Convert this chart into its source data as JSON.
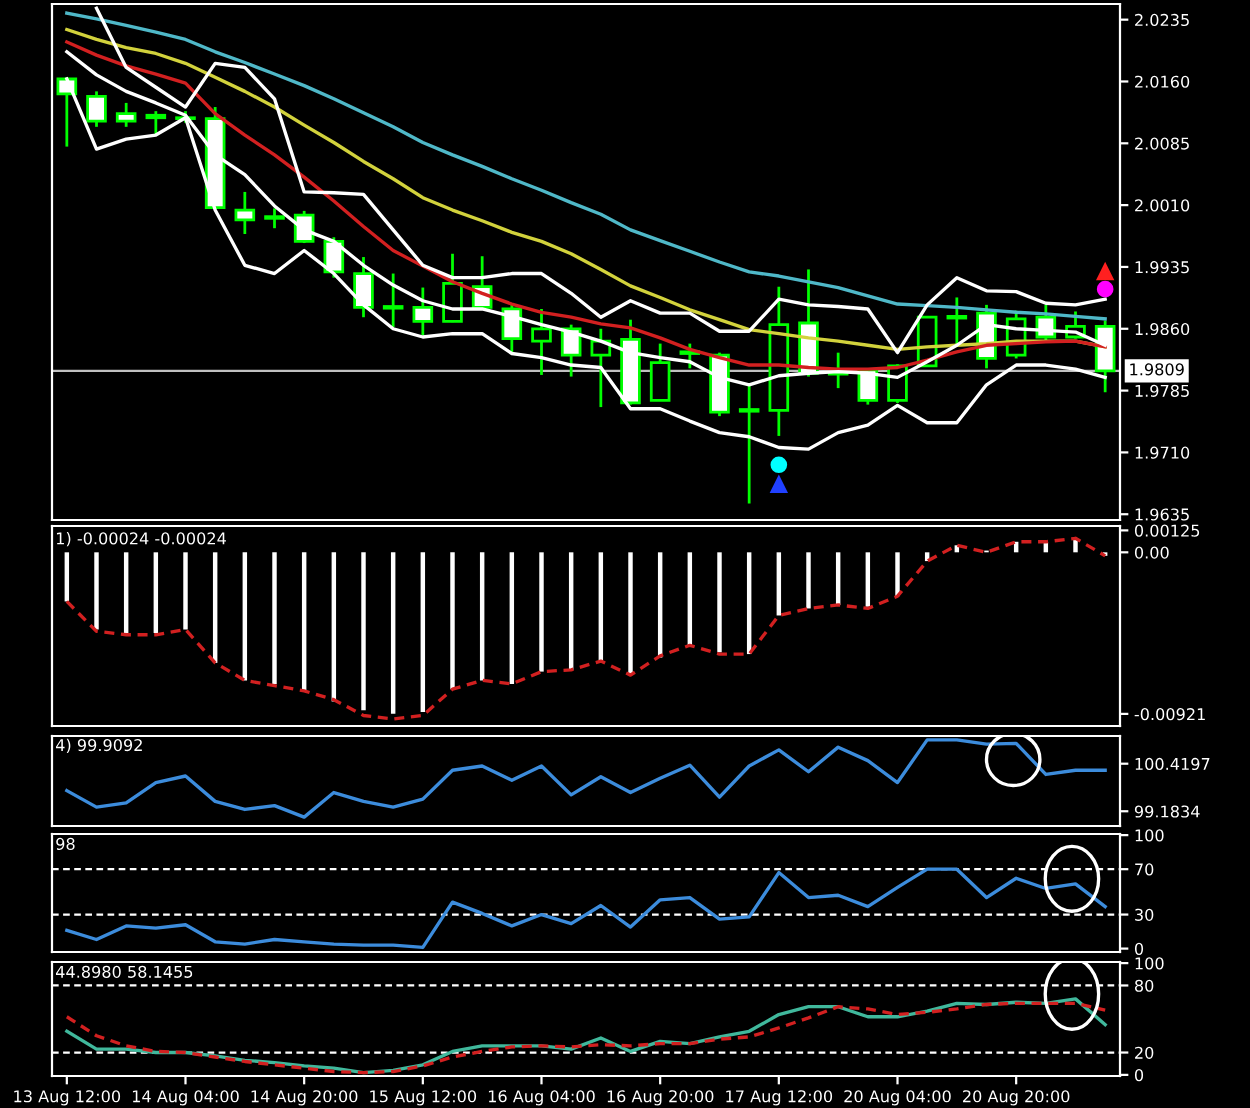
{
  "chart_data": [
    {
      "type": "candlestick",
      "categories": [
        null,
        null,
        null,
        null,
        null,
        null,
        null,
        null,
        null,
        null,
        null,
        null,
        null,
        null,
        null,
        null,
        null,
        null,
        null,
        null,
        null,
        null,
        null,
        null,
        null,
        null,
        null,
        null,
        null,
        null,
        null,
        null,
        null,
        null,
        null,
        null
      ],
      "ohlc": [
        [
          2.0163,
          2.0165,
          2.0081,
          2.0145
        ],
        [
          2.0142,
          2.0148,
          2.0105,
          2.0112
        ],
        [
          2.0121,
          2.0134,
          2.0105,
          2.0112
        ],
        [
          2.0119,
          2.0124,
          2.0095,
          2.0116
        ],
        [
          2.0116,
          2.0124,
          2.011,
          2.0115
        ],
        [
          2.0115,
          2.0129,
          2.0006,
          2.0007
        ],
        [
          2.0004,
          2.0026,
          1.9975,
          1.9992
        ],
        [
          1.9996,
          2.0006,
          1.9982,
          1.9994
        ],
        [
          1.9998,
          2.0003,
          1.9964,
          1.9966
        ],
        [
          1.9966,
          1.9971,
          1.9922,
          1.9929
        ],
        [
          1.9927,
          1.9947,
          1.9874,
          1.9886
        ],
        [
          1.9887,
          1.9927,
          1.9862,
          1.9885
        ],
        [
          1.9886,
          1.991,
          1.9852,
          1.9869
        ],
        [
          1.9869,
          1.9951,
          1.9868,
          1.9915
        ],
        [
          1.9911,
          1.9948,
          1.9884,
          1.9886
        ],
        [
          1.9884,
          1.9889,
          1.9831,
          1.9848
        ],
        [
          1.9845,
          1.9884,
          1.9804,
          1.986
        ],
        [
          1.986,
          1.9865,
          1.9802,
          1.9828
        ],
        [
          1.9828,
          1.986,
          1.9765,
          1.9845
        ],
        [
          1.9847,
          1.9871,
          1.9768,
          1.977
        ],
        [
          1.9773,
          1.9842,
          1.9773,
          1.9819
        ],
        [
          1.983,
          1.9842,
          1.9812,
          1.9832
        ],
        [
          1.9828,
          1.9831,
          1.9754,
          1.9759
        ],
        [
          1.9762,
          1.9792,
          1.9648,
          1.976
        ],
        [
          1.9761,
          1.9911,
          1.973,
          1.9865
        ],
        [
          1.9867,
          1.9932,
          1.9802,
          1.9806
        ],
        [
          1.9807,
          1.9831,
          1.9788,
          1.9805
        ],
        [
          1.981,
          1.9812,
          1.9768,
          1.9773
        ],
        [
          1.9773,
          1.9817,
          1.977,
          1.9815
        ],
        [
          1.9815,
          1.9875,
          1.9814,
          1.9874
        ],
        [
          1.9873,
          1.9898,
          1.9841,
          1.9875
        ],
        [
          1.9879,
          1.9889,
          1.9812,
          1.9824
        ],
        [
          1.9828,
          1.9882,
          1.9824,
          1.9872
        ],
        [
          1.9874,
          1.9889,
          1.9845,
          1.985
        ],
        [
          1.985,
          1.9881,
          1.9848,
          1.9863
        ],
        [
          1.9863,
          1.987,
          1.9783,
          1.9809
        ]
      ],
      "color": "#00ff00",
      "colors": [
        "#ffffff",
        "#ffffff",
        "#ffffff",
        "#ffffff",
        "#ffffff",
        "#ffffff",
        "#ffffff",
        "#ffffff",
        "#ffffff",
        "#ffffff",
        "#ffffff",
        "#ffffff",
        "#ffffff",
        "#000000",
        "#ffffff",
        "#ffffff",
        "#000000",
        "#ffffff",
        "#000000",
        "#ffffff",
        "#000000",
        "#000000",
        "#ffffff",
        "#ffffff",
        "#000000",
        "#ffffff",
        "#ffffff",
        "#ffffff",
        "#000000",
        "#000000",
        "#000000",
        "#ffffff",
        "#000000",
        "#ffffff",
        "#000000",
        "#ffffff"
      ],
      "series": [
        {
          "type": "line",
          "color": "#4fb8c8",
          "values": [
            2.0243,
            2.0236,
            2.0228,
            2.022,
            2.0211,
            2.0196,
            2.0183,
            2.0169,
            2.0155,
            2.0139,
            2.0122,
            2.0105,
            2.0086,
            2.0071,
            2.0057,
            2.0042,
            2.0028,
            2.0013,
            1.9999,
            1.998,
            1.9967,
            1.9954,
            1.9941,
            1.9929,
            1.9924,
            1.9917,
            1.991,
            1.99,
            1.989,
            1.9888,
            1.9886,
            1.9883,
            1.988,
            1.9878,
            1.9875,
            1.9872
          ]
        },
        {
          "type": "line",
          "color": "#d2d23c",
          "values": [
            2.0223,
            2.0211,
            2.0201,
            2.0194,
            2.0182,
            2.0165,
            2.0148,
            2.0129,
            2.0107,
            2.0086,
            2.0063,
            2.0042,
            2.0019,
            2.0004,
            1.9991,
            1.9977,
            1.9966,
            1.9951,
            1.9932,
            1.9912,
            1.9898,
            1.9883,
            1.9871,
            1.9859,
            1.9854,
            1.9849,
            1.9845,
            1.984,
            1.9835,
            1.9838,
            1.984,
            1.9842,
            1.9845,
            1.9845,
            1.9845,
            1.9838
          ]
        },
        {
          "type": "line",
          "color": "#d22020",
          "values": [
            2.0208,
            2.0192,
            2.0179,
            2.0169,
            2.0158,
            2.0121,
            2.0095,
            2.0071,
            2.0044,
            2.0015,
            1.9984,
            1.9955,
            1.9936,
            1.9917,
            1.9903,
            1.989,
            1.988,
            1.9874,
            1.9866,
            1.9861,
            1.9849,
            1.9835,
            1.9825,
            1.9816,
            1.9816,
            1.9813,
            1.9811,
            1.9811,
            1.9813,
            1.9822,
            1.9832,
            1.984,
            1.9842,
            1.9844,
            1.9845,
            1.9838
          ]
        },
        {
          "type": "line",
          "color": "#ffffff",
          "values": [
            null,
            2.0249,
            2.0177,
            2.0153,
            2.0129,
            2.0182,
            2.0177,
            2.0139,
            2.0026,
            2.0025,
            2.0023,
            1.998,
            1.9937,
            1.9922,
            1.9922,
            1.9927,
            1.9927,
            1.9903,
            1.9874,
            1.9894,
            1.9879,
            1.9879,
            1.9857,
            1.9857,
            1.9896,
            1.9889,
            1.9887,
            1.9884,
            1.9831,
            1.9889,
            1.9922,
            1.9906,
            1.9905,
            1.9891,
            1.9889,
            1.9896
          ]
        },
        {
          "type": "line",
          "color": "#ffffff",
          "values": [
            2.0196,
            2.0168,
            2.0148,
            2.0134,
            2.0119,
            2.0071,
            2.0047,
            2.0009,
            1.998,
            1.9966,
            1.9937,
            1.9913,
            1.9894,
            1.9884,
            1.9884,
            1.9875,
            1.9865,
            1.9856,
            1.9845,
            1.9831,
            1.9825,
            1.982,
            1.9801,
            1.9792,
            1.9803,
            1.9806,
            1.9808,
            1.9806,
            1.9801,
            1.982,
            1.984,
            1.9865,
            1.986,
            1.9858,
            1.9856,
            1.984
          ]
        },
        {
          "type": "line",
          "color": "#ffffff",
          "values": [
            2.0163,
            2.0078,
            2.009,
            2.0095,
            2.0116,
            2.0004,
            1.9937,
            1.9927,
            1.9955,
            1.9927,
            1.9889,
            1.986,
            1.985,
            1.9854,
            1.9854,
            1.983,
            1.9825,
            1.9816,
            1.9813,
            1.9763,
            1.9763,
            1.9748,
            1.9734,
            1.9729,
            1.9716,
            1.9714,
            1.9734,
            1.9743,
            1.9767,
            1.9746,
            1.9746,
            1.9792,
            1.9816,
            1.9816,
            1.9811,
            1.9801
          ]
        },
        {
          "type": "scatter",
          "marker": "circle",
          "color": "#ff00ff",
          "values": [
            null,
            null,
            null,
            null,
            null,
            null,
            null,
            null,
            null,
            null,
            null,
            null,
            null,
            null,
            null,
            null,
            null,
            null,
            null,
            null,
            null,
            null,
            null,
            null,
            null,
            null,
            null,
            null,
            null,
            null,
            null,
            null,
            null,
            null,
            null,
            1.9908
          ]
        },
        {
          "type": "scatter",
          "marker": "triangle",
          "color": "#ff2020",
          "values": [
            null,
            null,
            null,
            null,
            null,
            null,
            null,
            null,
            null,
            null,
            null,
            null,
            null,
            null,
            null,
            null,
            null,
            null,
            null,
            null,
            null,
            null,
            null,
            null,
            null,
            null,
            null,
            null,
            null,
            null,
            null,
            null,
            null,
            null,
            null,
            1.9929
          ]
        },
        {
          "type": "scatter",
          "marker": "circle",
          "color": "#00ffff",
          "values": [
            null,
            null,
            null,
            null,
            null,
            null,
            null,
            null,
            null,
            null,
            null,
            null,
            null,
            null,
            null,
            null,
            null,
            null,
            null,
            null,
            null,
            null,
            null,
            null,
            1.9695,
            null,
            null,
            null,
            null,
            null,
            null,
            null,
            null,
            null,
            null,
            null
          ]
        },
        {
          "type": "scatter",
          "marker": "triangle",
          "color": "#2040ff",
          "values": [
            null,
            null,
            null,
            null,
            null,
            null,
            null,
            null,
            null,
            null,
            null,
            null,
            null,
            null,
            null,
            null,
            null,
            null,
            null,
            null,
            null,
            null,
            null,
            null,
            1.9671,
            null,
            null,
            null,
            null,
            null,
            null,
            null,
            null,
            null,
            null,
            null
          ]
        }
      ],
      "ylim": [
        1.9628,
        2.0254
      ],
      "yticks": [
        {
          "value": 2.0235,
          "label": "2.0235"
        },
        {
          "value": 2.016,
          "label": "2.0160"
        },
        {
          "value": 2.0085,
          "label": "2.0085"
        },
        {
          "value": 2.001,
          "label": "2.0010"
        },
        {
          "value": 1.9935,
          "label": "1.9935"
        },
        {
          "value": 1.986,
          "label": "1.9860"
        },
        {
          "value": 1.9785,
          "label": "1.9785"
        },
        {
          "value": 1.971,
          "label": "1.9710"
        },
        {
          "value": 1.9635,
          "label": "1.9635"
        }
      ],
      "ref_lines": [
        {
          "axis": "y",
          "value": 1.9809,
          "label": "1.9809",
          "color": "#c0c0c0",
          "line_style": "solid"
        }
      ],
      "tick_labels": "y",
      "grid": false,
      "legend": false
    },
    {
      "type": "bar",
      "title": "1) -0.00024 -0.00024",
      "categories": [
        null,
        null,
        null,
        null,
        null,
        null,
        null,
        null,
        null,
        null,
        null,
        null,
        null,
        null,
        null,
        null,
        null,
        null,
        null,
        null,
        null,
        null,
        null,
        null,
        null,
        null,
        null,
        null,
        null,
        null,
        null,
        null,
        null,
        null,
        null,
        null
      ],
      "color": "#ffffff",
      "values": [
        -0.0028,
        -0.0044,
        -0.0046,
        -0.0046,
        -0.0044,
        -0.0063,
        -0.0073,
        -0.0075,
        -0.0079,
        -0.0085,
        -0.009,
        -0.0092,
        -0.0091,
        -0.0078,
        -0.0073,
        -0.0075,
        -0.0068,
        -0.0067,
        -0.0062,
        -0.0069,
        -0.006,
        -0.0053,
        -0.0057,
        -0.0058,
        -0.0036,
        -0.0032,
        -0.003,
        -0.0031,
        -0.0025,
        -0.0005,
        0.0004,
        0.0001,
        0.0006,
        0.0006,
        0.0008,
        -0.0002
      ],
      "series": [
        {
          "type": "line",
          "color": "#d22020",
          "line_style": "dashed",
          "values": [
            -0.0028,
            -0.0045,
            -0.0047,
            -0.0047,
            -0.0044,
            -0.0063,
            -0.0073,
            -0.0076,
            -0.0079,
            -0.0084,
            -0.0093,
            -0.0095,
            -0.0093,
            -0.0078,
            -0.0073,
            -0.0075,
            -0.0068,
            -0.0067,
            -0.0062,
            -0.007,
            -0.0059,
            -0.0053,
            -0.0058,
            -0.0058,
            -0.0036,
            -0.0032,
            -0.003,
            -0.0032,
            -0.0025,
            -0.0005,
            0.0004,
            0.0,
            0.0006,
            0.0006,
            0.0008,
            -0.0002
          ]
        }
      ],
      "ylim": [
        -0.0099,
        0.0015
      ],
      "yticks": [
        {
          "value": 0.00125,
          "label": "0.00125"
        },
        {
          "value": 0,
          "label": "0.00"
        },
        {
          "value": -0.00921,
          "label": "-0.00921"
        }
      ],
      "tick_labels": "y",
      "grid": false,
      "legend": false
    },
    {
      "type": "line",
      "title": "4) 99.9092",
      "categories": [
        null,
        null,
        null,
        null,
        null,
        null,
        null,
        null,
        null,
        null,
        null,
        null,
        null,
        null,
        null,
        null,
        null,
        null,
        null,
        null,
        null,
        null,
        null,
        null,
        null,
        null,
        null,
        null,
        null,
        null,
        null,
        null,
        null,
        null,
        null,
        null
      ],
      "series": [
        {
          "color": "#3c8cdc",
          "values": [
            99.72,
            99.29,
            99.4,
            99.93,
            100.1,
            99.44,
            99.23,
            99.33,
            99.03,
            99.67,
            99.44,
            99.29,
            99.5,
            100.25,
            100.36,
            99.99,
            100.36,
            99.61,
            100.08,
            99.67,
            100.04,
            100.38,
            99.55,
            100.36,
            100.78,
            100.21,
            100.85,
            100.5,
            99.93,
            101.04,
            101.04,
            100.93,
            100.95,
            100.14,
            100.25,
            100.25
          ]
        }
      ],
      "ylim": [
        98.8,
        101.14
      ],
      "yticks": [
        {
          "value": 100.4197,
          "label": "100.4197"
        },
        {
          "value": 99.1834,
          "label": "99.1834"
        }
      ],
      "tick_labels": "y",
      "grid": false,
      "legend": false
    },
    {
      "type": "line",
      "title": "98",
      "categories": [
        null,
        null,
        null,
        null,
        null,
        null,
        null,
        null,
        null,
        null,
        null,
        null,
        null,
        null,
        null,
        null,
        null,
        null,
        null,
        null,
        null,
        null,
        null,
        null,
        null,
        null,
        null,
        null,
        null,
        null,
        null,
        null,
        null,
        null,
        null,
        null
      ],
      "series": [
        {
          "color": "#3c8cdc",
          "values": [
            16,
            8,
            20,
            18,
            21,
            6,
            4,
            8,
            6,
            4,
            3,
            3,
            1,
            41,
            31,
            20,
            30,
            22,
            38,
            19,
            43,
            45,
            26,
            28,
            67,
            45,
            47,
            37,
            54,
            70,
            70,
            45,
            62,
            53,
            57,
            37
          ]
        }
      ],
      "ylim": [
        -3,
        101
      ],
      "yticks": [
        100,
        70,
        30,
        0
      ],
      "ref_lines": [
        {
          "axis": "y",
          "value": 70,
          "color": "#ffffff",
          "line_style": "dashed"
        },
        {
          "axis": "y",
          "value": 30,
          "color": "#ffffff",
          "line_style": "dashed"
        }
      ],
      "tick_labels": "y",
      "grid": false,
      "legend": false
    },
    {
      "type": "line",
      "title": "44.8980 58.1455",
      "categories": [
        "13 Aug 12:00",
        null,
        null,
        null,
        "14 Aug 04:00",
        null,
        null,
        null,
        "14 Aug 20:00",
        null,
        null,
        null,
        "15 Aug 12:00",
        null,
        null,
        null,
        "16 Aug 04:00",
        null,
        null,
        null,
        "16 Aug 20:00",
        null,
        null,
        null,
        "17 Aug 12:00",
        null,
        null,
        null,
        "20 Aug 04:00",
        null,
        null,
        null,
        "20 Aug 20:00",
        null,
        null,
        null
      ],
      "series": [
        {
          "color": "#40b89c",
          "values": [
            39,
            23,
            23,
            20,
            20,
            17,
            13,
            11,
            8,
            6,
            2,
            4,
            9,
            21,
            26,
            26,
            26,
            23,
            33,
            21,
            30,
            28,
            34,
            39,
            54,
            61,
            61,
            52,
            52,
            57,
            64,
            63,
            65,
            64,
            68,
            45
          ]
        },
        {
          "color": "#d22020",
          "line_style": "dashed",
          "values": [
            52,
            35,
            26,
            21,
            20,
            16,
            12,
            9,
            6,
            3,
            2,
            3,
            8,
            16,
            21,
            25,
            26,
            25,
            27,
            26,
            28,
            28,
            32,
            34,
            42,
            51,
            61,
            59,
            54,
            56,
            59,
            63,
            64,
            64,
            64,
            58
          ]
        }
      ],
      "ylim": [
        -1,
        101
      ],
      "yticks": [
        100,
        80,
        20,
        0
      ],
      "ref_lines": [
        {
          "axis": "y",
          "value": 80,
          "color": "#ffffff",
          "line_style": "dashed"
        },
        {
          "axis": "y",
          "value": 20,
          "color": "#ffffff",
          "line_style": "dashed"
        }
      ],
      "grid": false,
      "legend": false
    }
  ]
}
